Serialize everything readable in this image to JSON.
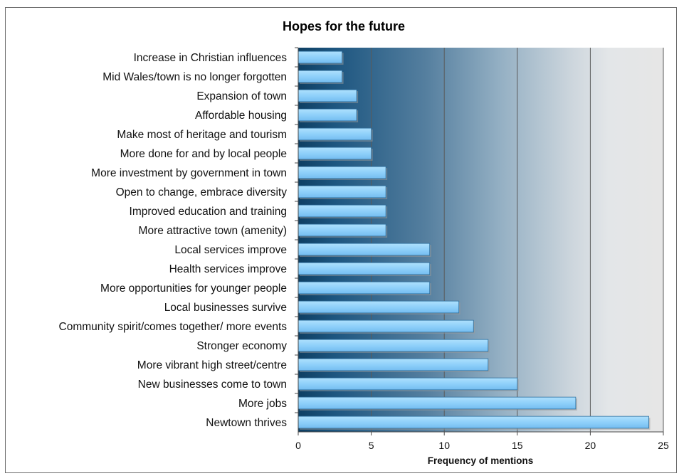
{
  "chart_data": {
    "type": "bar",
    "orientation": "horizontal",
    "title": "Hopes for the future",
    "xlabel": "Frequency of mentions",
    "ylabel": "",
    "xlim": [
      0,
      25
    ],
    "x_ticks": [
      0,
      5,
      10,
      15,
      20,
      25
    ],
    "grid": true,
    "legend": "none",
    "categories": [
      "Increase in Christian influences",
      "Mid Wales/town is no longer forgotten",
      "Expansion of town",
      "Affordable housing",
      "Make most of heritage and tourism",
      "More done for and by local people",
      "More investment by government in town",
      "Open to change, embrace diversity",
      "Improved education and training",
      "More attractive town (amenity)",
      "Local services improve",
      "Health services improve",
      "More opportunities for younger people",
      "Local businesses survive",
      "Community spirit/comes together/ more events",
      "Stronger economy",
      "More vibrant high street/centre",
      "New businesses come to town",
      "More jobs",
      "Newtown thrives"
    ],
    "values": [
      3,
      3,
      4,
      4,
      5,
      5,
      6,
      6,
      6,
      6,
      9,
      9,
      9,
      11,
      12,
      13,
      13,
      15,
      19,
      24
    ],
    "colors": {
      "bar_fill": "#8fd0fa",
      "bar_stroke": "#2e6f9e",
      "bar_shadow": "#9a9a9a",
      "plot_bg_dark": "#0e3f63",
      "plot_bg_light": "#e6e6e6",
      "gridline": "#5a5a5a"
    }
  }
}
